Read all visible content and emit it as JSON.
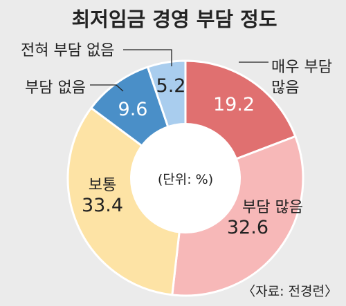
{
  "chart_data": {
    "type": "pie",
    "title": "최저임금 경영 부담 정도",
    "unit_note": "(단위: %)",
    "source": "〈자료: 전경련〉",
    "slices": [
      {
        "label": "매우 부담 많음",
        "value": 19.2,
        "value_text": "19.2",
        "color": "#e07070"
      },
      {
        "label": "부담 많음",
        "value": 32.6,
        "value_text": "32.6",
        "color": "#f7b8b8"
      },
      {
        "label": "보통",
        "value": 33.4,
        "value_text": "33.4",
        "color": "#fde3a5"
      },
      {
        "label": "부담 없음",
        "value": 9.6,
        "value_text": "9.6",
        "color": "#4a8fc8"
      },
      {
        "label": "전혀 부담 없음",
        "value": 5.2,
        "value_text": "5.2",
        "color": "#a9cdee"
      }
    ]
  }
}
